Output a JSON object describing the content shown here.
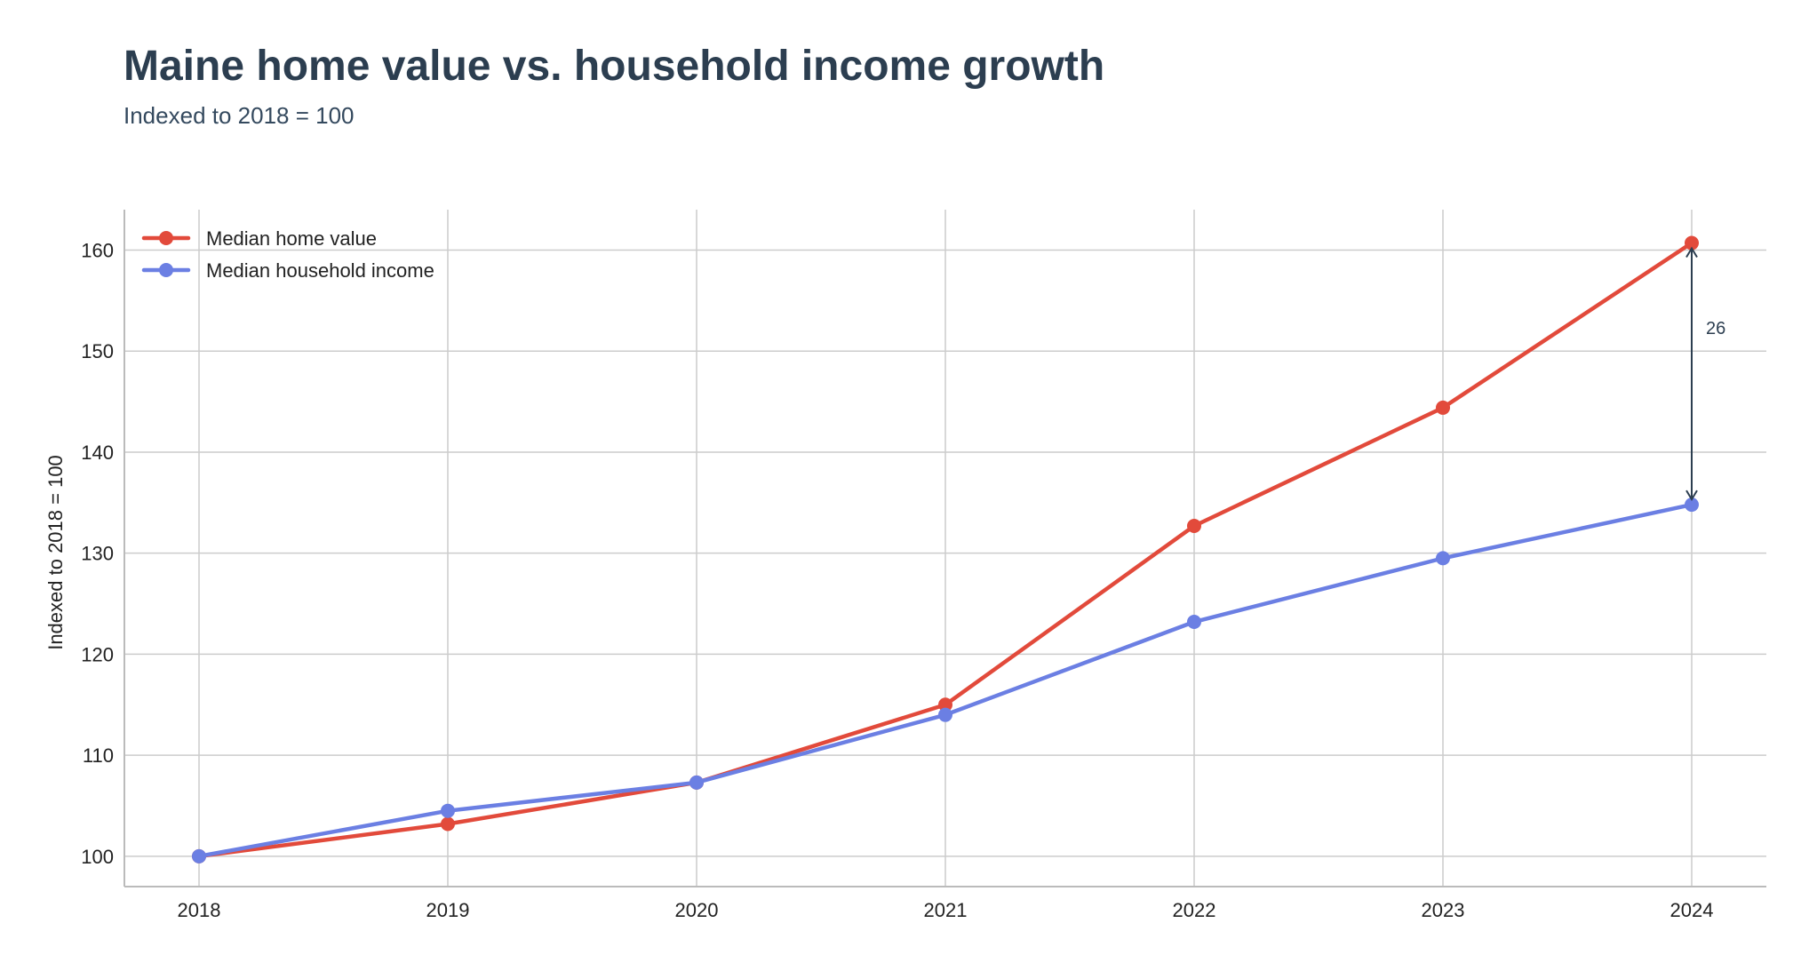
{
  "chart_data": {
    "type": "line",
    "title": "Maine home value vs. household income growth",
    "subtitle": "Indexed to 2018 = 100",
    "xlabel": "",
    "ylabel": "Indexed to 2018 = 100",
    "x": [
      2018,
      2019,
      2020,
      2021,
      2022,
      2023,
      2024
    ],
    "x_tick_labels": [
      "2018",
      "2019",
      "2020",
      "2021",
      "2022",
      "2023",
      "2024"
    ],
    "xlim": [
      2017.7,
      2024.3
    ],
    "ylim": [
      97,
      164
    ],
    "y_ticks": [
      100,
      110,
      120,
      130,
      140,
      150,
      160
    ],
    "y_tick_labels": [
      "100",
      "110",
      "120",
      "130",
      "140",
      "150",
      "160"
    ],
    "grid": true,
    "legend_position": "top-left",
    "series": [
      {
        "name": "Median home value",
        "color": "#e24a3b",
        "values": [
          100,
          103.2,
          107.3,
          115.0,
          132.7,
          144.4,
          160.7
        ]
      },
      {
        "name": "Median household income",
        "color": "#6b7fe3",
        "values": [
          100,
          104.5,
          107.3,
          114.0,
          123.2,
          129.5,
          134.8
        ]
      }
    ],
    "annotations": [
      {
        "type": "gap-arrow",
        "x": 2024,
        "y_from": 160.7,
        "y_to": 134.8,
        "label": "26"
      }
    ]
  },
  "colors": {
    "title": "#2c3e50",
    "subtitle": "#34495e",
    "grid": "#cccccc",
    "axis": "#bbbbbb",
    "annotation": "#2c3e50"
  }
}
